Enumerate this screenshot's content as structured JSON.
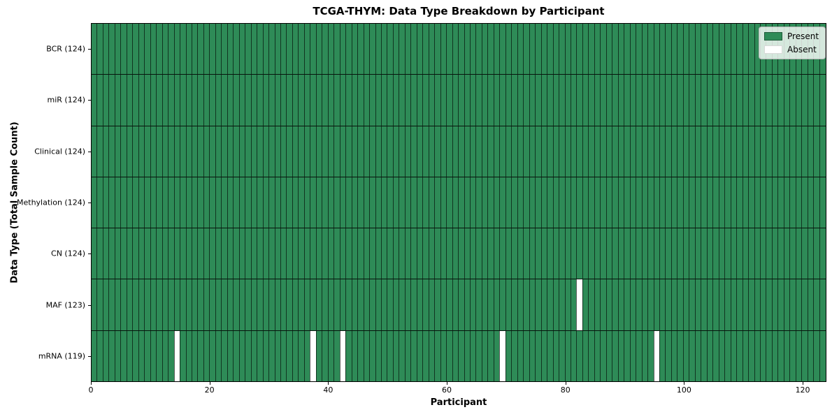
{
  "figure": {
    "title": "TCGA-THYM: Data Type Breakdown by Participant",
    "xlabel": "Participant",
    "ylabel": "Data Type (Total Sample Count)"
  },
  "legend": {
    "items": [
      {
        "label": "Present",
        "color": "#2e8b57",
        "swatch_border": "rgba(0,0,0,0.35)"
      },
      {
        "label": "Absent",
        "color": "#ffffff",
        "swatch_border": "rgba(0,0,0,0.15)"
      }
    ],
    "position": "upper right"
  },
  "chart_data": {
    "type": "heatmap",
    "title": "TCGA-THYM: Data Type Breakdown by Participant",
    "xlabel": "Participant",
    "ylabel": "Data Type (Total Sample Count)",
    "n_participants": 124,
    "xlim": [
      0,
      124
    ],
    "x_ticks": [
      0,
      20,
      40,
      60,
      80,
      100,
      120
    ],
    "rows": [
      {
        "label": "BCR (124)",
        "data_type": "BCR",
        "present_count": 124,
        "absent_participants": []
      },
      {
        "label": "miR (124)",
        "data_type": "miR",
        "present_count": 124,
        "absent_participants": []
      },
      {
        "label": "Clinical (124)",
        "data_type": "Clinical",
        "present_count": 124,
        "absent_participants": []
      },
      {
        "label": "Methylation (124)",
        "data_type": "Methylation",
        "present_count": 124,
        "absent_participants": []
      },
      {
        "label": "CN (124)",
        "data_type": "CN",
        "present_count": 124,
        "absent_participants": []
      },
      {
        "label": "MAF (123)",
        "data_type": "MAF",
        "present_count": 123,
        "absent_participants": [
          82
        ]
      },
      {
        "label": "mRNA (119)",
        "data_type": "mRNA",
        "present_count": 119,
        "absent_participants": [
          14,
          37,
          42,
          69,
          95
        ]
      }
    ],
    "colors": {
      "present": "#2e8b57",
      "absent": "#ffffff"
    },
    "legend": [
      "Present",
      "Absent"
    ],
    "legend_position": "upper right",
    "grid": "cell-edges"
  }
}
